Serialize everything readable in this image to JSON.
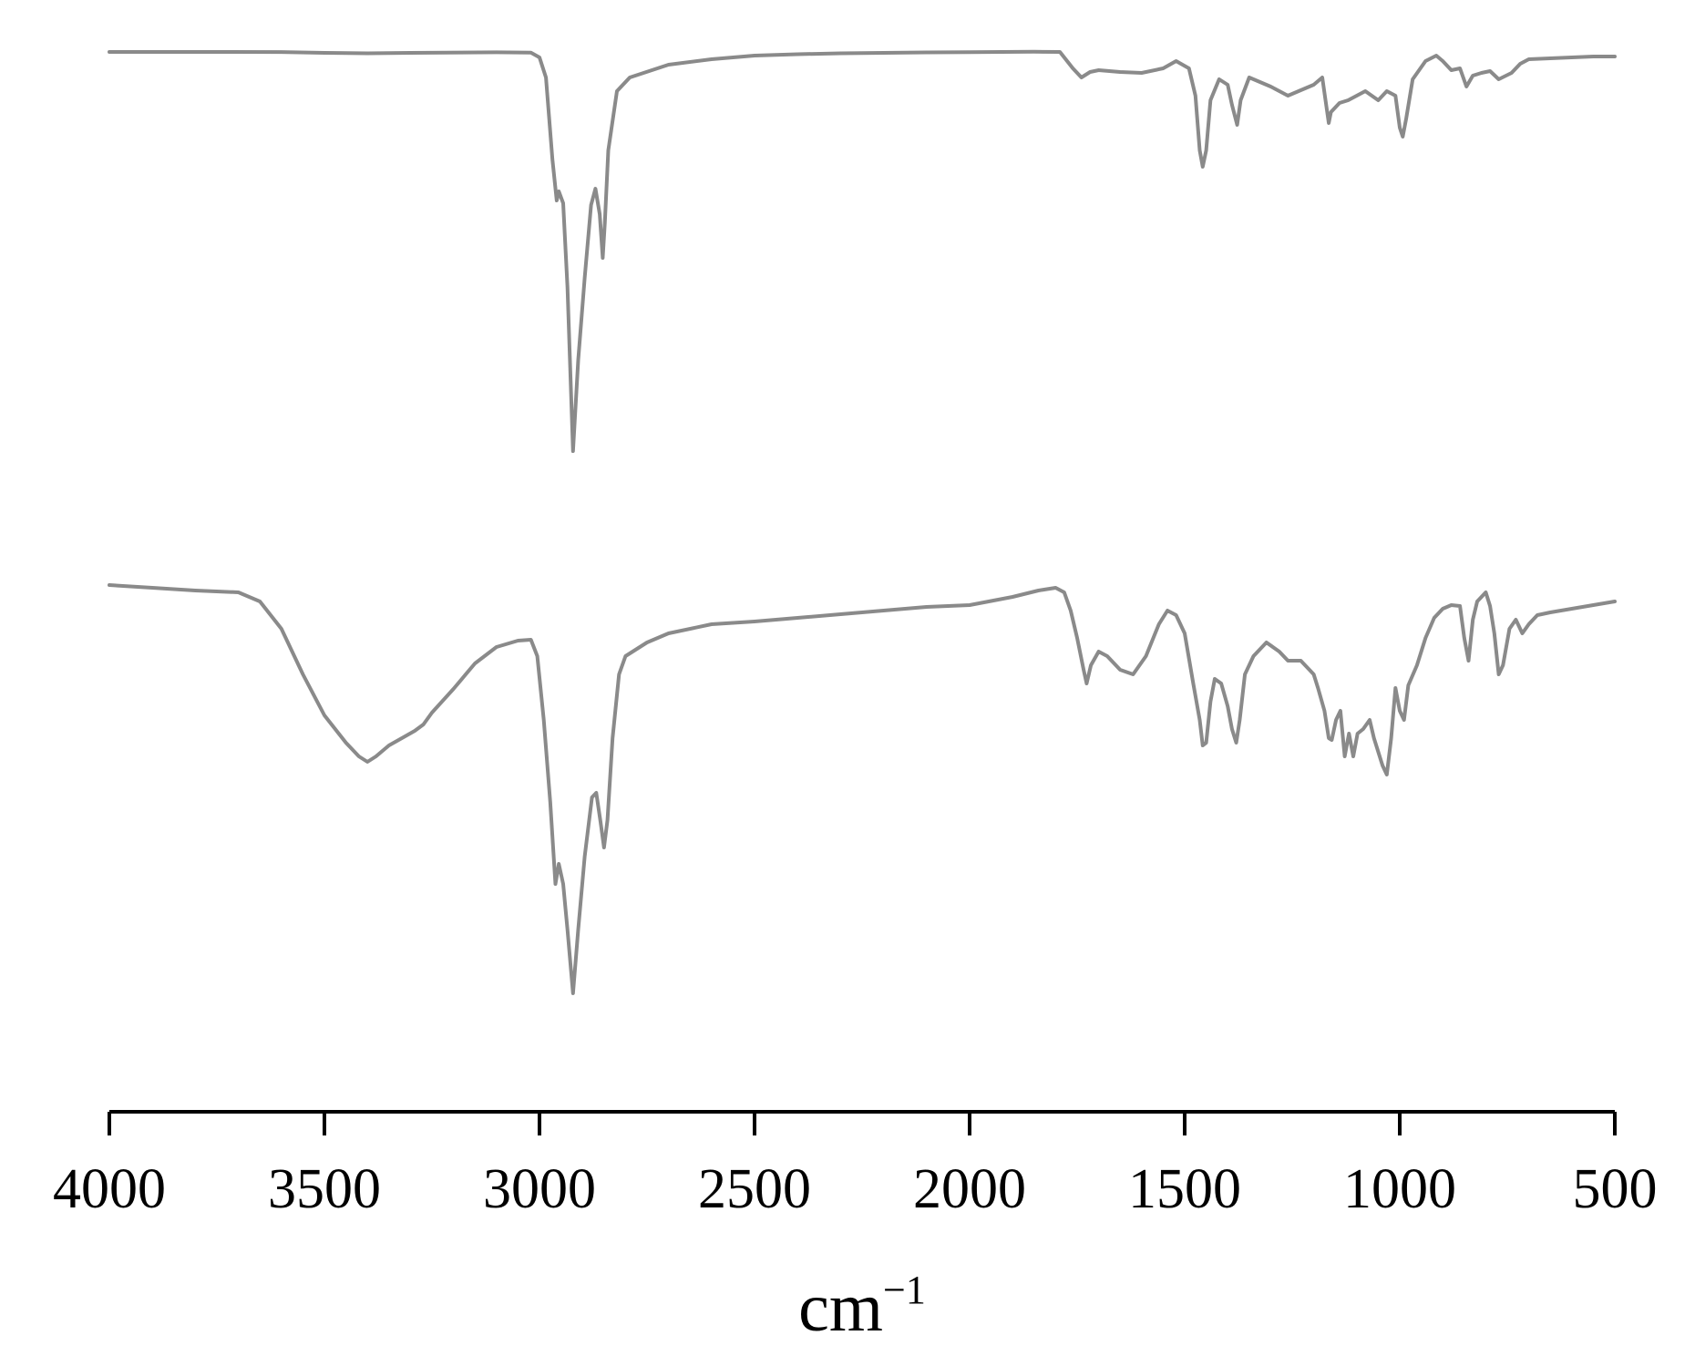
{
  "chart_data": {
    "type": "line",
    "x_axis": {
      "range": [
        4000,
        500
      ],
      "reversed": true,
      "ticks": [
        4000,
        3500,
        3000,
        2500,
        2000,
        1500,
        1000,
        500
      ],
      "tick_labels": [
        "4000",
        "3500",
        "3000",
        "2500",
        "2000",
        "1500",
        "1000",
        "500"
      ],
      "label_base": "cm",
      "label_sup": "−1"
    },
    "y_axis": {
      "visible": false
    },
    "grid": false,
    "legend": "none",
    "color": "#8a8a8a",
    "series": [
      {
        "points": [
          [
            4000,
            2.0
          ],
          [
            3800,
            2.0
          ],
          [
            3600,
            2.1
          ],
          [
            3500,
            3.0
          ],
          [
            3400,
            3.5
          ],
          [
            3300,
            3.0
          ],
          [
            3100,
            2.4
          ],
          [
            3020,
            2.8
          ],
          [
            3000,
            8
          ],
          [
            2985,
            30
          ],
          [
            2970,
            120
          ],
          [
            2960,
            165
          ],
          [
            2955,
            155
          ],
          [
            2945,
            168
          ],
          [
            2935,
            260
          ],
          [
            2922,
            440
          ],
          [
            2910,
            340
          ],
          [
            2895,
            250
          ],
          [
            2880,
            170
          ],
          [
            2870,
            152
          ],
          [
            2860,
            180
          ],
          [
            2853,
            228
          ],
          [
            2848,
            190
          ],
          [
            2840,
            110
          ],
          [
            2820,
            45
          ],
          [
            2790,
            30
          ],
          [
            2700,
            16
          ],
          [
            2600,
            10
          ],
          [
            2500,
            6
          ],
          [
            2400,
            4.5
          ],
          [
            2300,
            3.5
          ],
          [
            2200,
            3.0
          ],
          [
            2100,
            2.5
          ],
          [
            2000,
            2.2
          ],
          [
            1850,
            1.8
          ],
          [
            1790,
            2.0
          ],
          [
            1760,
            20
          ],
          [
            1740,
            30
          ],
          [
            1720,
            24
          ],
          [
            1700,
            22
          ],
          [
            1650,
            24
          ],
          [
            1600,
            25
          ],
          [
            1550,
            20
          ],
          [
            1520,
            12
          ],
          [
            1490,
            20
          ],
          [
            1475,
            50
          ],
          [
            1465,
            110
          ],
          [
            1458,
            128
          ],
          [
            1450,
            110
          ],
          [
            1440,
            55
          ],
          [
            1420,
            32
          ],
          [
            1400,
            38
          ],
          [
            1390,
            60
          ],
          [
            1378,
            82
          ],
          [
            1370,
            55
          ],
          [
            1350,
            30
          ],
          [
            1300,
            40
          ],
          [
            1260,
            50
          ],
          [
            1230,
            44
          ],
          [
            1200,
            38
          ],
          [
            1180,
            30
          ],
          [
            1165,
            80
          ],
          [
            1160,
            68
          ],
          [
            1140,
            58
          ],
          [
            1120,
            55
          ],
          [
            1100,
            50
          ],
          [
            1080,
            45
          ],
          [
            1050,
            55
          ],
          [
            1030,
            45
          ],
          [
            1010,
            50
          ],
          [
            1000,
            85
          ],
          [
            993,
            95
          ],
          [
            985,
            75
          ],
          [
            970,
            32
          ],
          [
            940,
            12
          ],
          [
            915,
            6
          ],
          [
            900,
            12
          ],
          [
            880,
            22
          ],
          [
            860,
            20
          ],
          [
            845,
            40
          ],
          [
            830,
            28
          ],
          [
            810,
            25
          ],
          [
            790,
            23
          ],
          [
            770,
            32
          ],
          [
            740,
            25
          ],
          [
            720,
            15
          ],
          [
            700,
            10
          ],
          [
            650,
            9
          ],
          [
            600,
            8
          ],
          [
            550,
            7
          ],
          [
            500,
            7
          ]
        ]
      },
      {
        "points": [
          [
            4000,
            2
          ],
          [
            3900,
            5
          ],
          [
            3800,
            8
          ],
          [
            3700,
            10
          ],
          [
            3650,
            20
          ],
          [
            3600,
            50
          ],
          [
            3550,
            100
          ],
          [
            3500,
            145
          ],
          [
            3450,
            175
          ],
          [
            3420,
            190
          ],
          [
            3400,
            196
          ],
          [
            3380,
            190
          ],
          [
            3350,
            178
          ],
          [
            3320,
            170
          ],
          [
            3290,
            162
          ],
          [
            3270,
            155
          ],
          [
            3250,
            142
          ],
          [
            3200,
            116
          ],
          [
            3150,
            88
          ],
          [
            3100,
            70
          ],
          [
            3050,
            63
          ],
          [
            3020,
            62
          ],
          [
            3005,
            80
          ],
          [
            2990,
            150
          ],
          [
            2975,
            240
          ],
          [
            2963,
            330
          ],
          [
            2955,
            308
          ],
          [
            2945,
            330
          ],
          [
            2935,
            380
          ],
          [
            2922,
            450
          ],
          [
            2910,
            380
          ],
          [
            2895,
            300
          ],
          [
            2878,
            235
          ],
          [
            2868,
            230
          ],
          [
            2858,
            262
          ],
          [
            2850,
            290
          ],
          [
            2842,
            260
          ],
          [
            2830,
            170
          ],
          [
            2815,
            100
          ],
          [
            2800,
            80
          ],
          [
            2750,
            65
          ],
          [
            2700,
            55
          ],
          [
            2600,
            45
          ],
          [
            2500,
            42
          ],
          [
            2400,
            38
          ],
          [
            2300,
            34
          ],
          [
            2200,
            30
          ],
          [
            2100,
            26
          ],
          [
            2000,
            24
          ],
          [
            1900,
            15
          ],
          [
            1840,
            8
          ],
          [
            1800,
            5
          ],
          [
            1780,
            10
          ],
          [
            1765,
            30
          ],
          [
            1750,
            60
          ],
          [
            1735,
            95
          ],
          [
            1728,
            110
          ],
          [
            1718,
            90
          ],
          [
            1700,
            75
          ],
          [
            1680,
            80
          ],
          [
            1650,
            95
          ],
          [
            1620,
            100
          ],
          [
            1590,
            80
          ],
          [
            1560,
            45
          ],
          [
            1540,
            30
          ],
          [
            1520,
            35
          ],
          [
            1500,
            55
          ],
          [
            1480,
            110
          ],
          [
            1465,
            150
          ],
          [
            1458,
            178
          ],
          [
            1450,
            175
          ],
          [
            1440,
            130
          ],
          [
            1430,
            105
          ],
          [
            1415,
            110
          ],
          [
            1400,
            135
          ],
          [
            1390,
            160
          ],
          [
            1380,
            175
          ],
          [
            1372,
            150
          ],
          [
            1360,
            100
          ],
          [
            1340,
            80
          ],
          [
            1310,
            65
          ],
          [
            1280,
            75
          ],
          [
            1260,
            85
          ],
          [
            1230,
            85
          ],
          [
            1210,
            95
          ],
          [
            1200,
            100
          ],
          [
            1190,
            115
          ],
          [
            1175,
            140
          ],
          [
            1165,
            170
          ],
          [
            1158,
            172
          ],
          [
            1148,
            150
          ],
          [
            1138,
            140
          ],
          [
            1128,
            190
          ],
          [
            1118,
            165
          ],
          [
            1108,
            190
          ],
          [
            1098,
            165
          ],
          [
            1085,
            160
          ],
          [
            1070,
            150
          ],
          [
            1060,
            170
          ],
          [
            1050,
            185
          ],
          [
            1040,
            200
          ],
          [
            1030,
            210
          ],
          [
            1020,
            170
          ],
          [
            1010,
            115
          ],
          [
            1000,
            140
          ],
          [
            990,
            150
          ],
          [
            980,
            112
          ],
          [
            960,
            90
          ],
          [
            940,
            60
          ],
          [
            920,
            38
          ],
          [
            900,
            28
          ],
          [
            880,
            24
          ],
          [
            860,
            25
          ],
          [
            850,
            60
          ],
          [
            840,
            85
          ],
          [
            830,
            40
          ],
          [
            820,
            20
          ],
          [
            800,
            10
          ],
          [
            790,
            25
          ],
          [
            780,
            55
          ],
          [
            770,
            100
          ],
          [
            760,
            90
          ],
          [
            745,
            50
          ],
          [
            730,
            40
          ],
          [
            715,
            55
          ],
          [
            700,
            45
          ],
          [
            680,
            35
          ],
          [
            650,
            32
          ],
          [
            600,
            28
          ],
          [
            550,
            24
          ],
          [
            500,
            20
          ]
        ]
      }
    ]
  }
}
